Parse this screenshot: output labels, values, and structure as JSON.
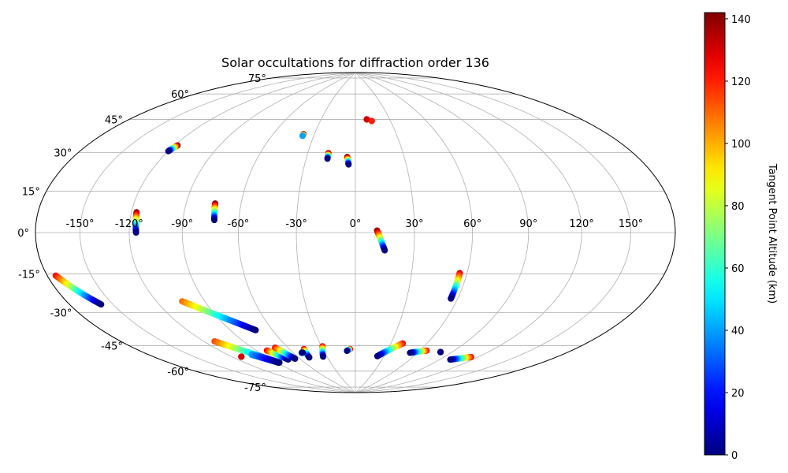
{
  "chart_data": {
    "type": "scatter",
    "projection": "hammer",
    "title": "Solar occultations for diffraction order 136",
    "x_ticks": [
      "-150°",
      "-120°",
      "-90°",
      "-60°",
      "-30°",
      "0°",
      "30°",
      "60°",
      "90°",
      "120°",
      "150°"
    ],
    "x_tick_values": [
      -150,
      -120,
      -90,
      -60,
      -30,
      0,
      30,
      60,
      90,
      120,
      150
    ],
    "y_ticks": [
      "-75°",
      "-60°",
      "-45°",
      "-30°",
      "-15°",
      "0°",
      "15°",
      "30°",
      "45°",
      "60°",
      "75°"
    ],
    "y_tick_values": [
      -75,
      -60,
      -45,
      -30,
      -15,
      0,
      15,
      30,
      45,
      60,
      75
    ],
    "xlim": [
      -180,
      180
    ],
    "ylim": [
      -90,
      90
    ],
    "grid": true,
    "colorbar": {
      "label": "Tangent Point Altitude (km)",
      "colormap": "jet",
      "range": [
        0,
        142
      ],
      "ticks": [
        "0",
        "20",
        "40",
        "60",
        "80",
        "100",
        "120",
        "140"
      ],
      "tick_values": [
        0,
        20,
        40,
        60,
        80,
        100,
        120,
        140
      ]
    },
    "tracks": [
      {
        "lon_start": 11,
        "lat_start": 1,
        "alt_start": 142,
        "lon_end": 15,
        "lat_end": -9,
        "alt_end": 0
      },
      {
        "lon_start": 10,
        "lat_start": 60,
        "alt_start": 142,
        "lon_end": 10,
        "lat_end": 60,
        "alt_end": 130
      },
      {
        "lon_start": 14,
        "lat_start": 59,
        "alt_start": 142,
        "lon_end": 14,
        "lat_end": 59,
        "alt_end": 120
      },
      {
        "lon_start": -5,
        "lat_start": 39,
        "alt_start": 142,
        "lon_end": -4,
        "lat_end": 35,
        "alt_end": 0
      },
      {
        "lon_start": -17,
        "lat_start": 41,
        "alt_start": 142,
        "lon_end": -17,
        "lat_end": 38,
        "alt_end": 0
      },
      {
        "lon_start": -38,
        "lat_start": 51,
        "alt_start": 142,
        "lon_end": -38,
        "lat_end": 50,
        "alt_end": 40
      },
      {
        "lon_start": -118,
        "lat_start": 40,
        "alt_start": 142,
        "lon_end": -120,
        "lat_end": 37,
        "alt_end": 0
      },
      {
        "lon_start": -117,
        "lat_start": 9,
        "alt_start": 142,
        "lon_end": -116,
        "lat_end": 0,
        "alt_end": 0
      },
      {
        "lon_start": -74,
        "lat_start": 14,
        "alt_start": 142,
        "lon_end": -73,
        "lat_end": 6,
        "alt_end": 0
      },
      {
        "lon_start": 56,
        "lat_start": -20,
        "alt_start": 130,
        "lon_end": 56,
        "lat_end": -33,
        "alt_end": 0
      },
      {
        "lon_start": -174,
        "lat_start": -16,
        "alt_start": 125,
        "lon_end": -158,
        "lat_end": -29,
        "alt_end": 0
      },
      {
        "lon_start": -104,
        "lat_start": -32,
        "alt_start": 110,
        "lon_end": -72,
        "lat_end": -49,
        "alt_end": 0
      },
      {
        "lon_start": -112,
        "lat_start": -52,
        "alt_start": 115,
        "lon_end": -87,
        "lat_end": -67,
        "alt_end": 0
      },
      {
        "lon_start": -112,
        "lat_start": -61,
        "alt_start": 142,
        "lon_end": -112,
        "lat_end": -61,
        "alt_end": 130
      },
      {
        "lon_start": -100,
        "lat_start": -61,
        "alt_start": 40,
        "lon_end": -88,
        "lat_end": -67,
        "alt_end": 0
      },
      {
        "lon_start": -81,
        "lat_start": -60,
        "alt_start": 125,
        "lon_end": -73,
        "lat_end": -66,
        "alt_end": 0
      },
      {
        "lon_start": -71,
        "lat_start": -59,
        "alt_start": 125,
        "lon_end": -65,
        "lat_end": -66,
        "alt_end": 0
      },
      {
        "lon_start": -47,
        "lat_start": -61,
        "alt_start": 125,
        "lon_end": -49,
        "lat_end": -66,
        "alt_end": 0
      },
      {
        "lon_start": -52,
        "lat_start": -63,
        "alt_start": 10,
        "lon_end": -51,
        "lat_end": -63,
        "alt_end": 0
      },
      {
        "lon_start": -29,
        "lat_start": -60,
        "alt_start": 125,
        "lon_end": -34,
        "lat_end": -66,
        "alt_end": 0
      },
      {
        "lon_start": -5,
        "lat_start": -62,
        "alt_start": 125,
        "lon_end": -8,
        "lat_end": -63,
        "alt_end": 0
      },
      {
        "lon_start": 40,
        "lat_start": -58,
        "alt_start": 125,
        "lon_end": 23,
        "lat_end": -66,
        "alt_end": 0
      },
      {
        "lon_start": 66,
        "lat_start": -61,
        "alt_start": 125,
        "lon_end": 53,
        "lat_end": -63,
        "alt_end": 0
      },
      {
        "lon_start": 80,
        "lat_start": -61,
        "alt_start": 5,
        "lon_end": 80,
        "lat_end": -61,
        "alt_end": 0
      },
      {
        "lon_start": 114,
        "lat_start": -61,
        "alt_start": 125,
        "lon_end": 100,
        "lat_end": -64,
        "alt_end": 0
      }
    ]
  }
}
